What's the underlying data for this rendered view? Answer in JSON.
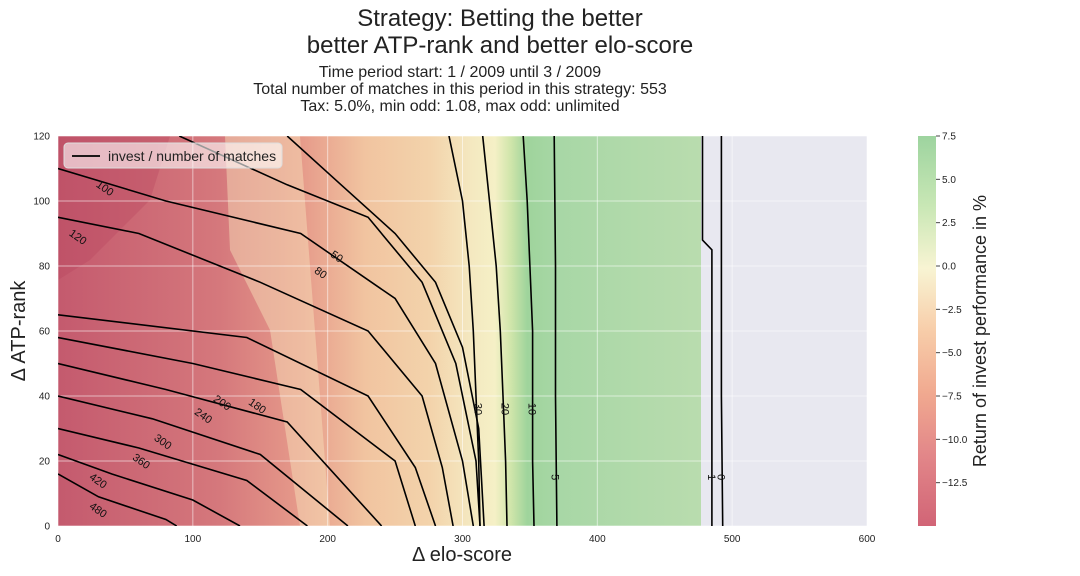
{
  "chart_data": {
    "type": "contour",
    "title": "Strategy: Betting the better",
    "subtitle_line": "better ATP-rank and better elo-score",
    "info": [
      "Time period start: 1 / 2009 until 3 / 2009",
      "Total number of matches in this period in this strategy: 553",
      "Tax: 5.0%, min odd: 1.08, max odd: unlimited"
    ],
    "xlabel": "Δ elo-score",
    "ylabel": "Δ ATP-rank",
    "xlim": [
      0,
      600
    ],
    "ylim": [
      0,
      120
    ],
    "xticks": [
      "0",
      "100",
      "200",
      "300",
      "400",
      "500",
      "600"
    ],
    "yticks": [
      "0",
      "20",
      "40",
      "60",
      "80",
      "100",
      "120"
    ],
    "grid": true,
    "legend": {
      "position": "top-left",
      "entries": [
        "invest / number of matches"
      ]
    },
    "colorbar": {
      "label": "Return of invest performance in %",
      "range": [
        -15,
        7.5
      ],
      "ticks": [
        "7.5",
        "5.0",
        "2.5",
        "0.0",
        "−2.5",
        "−5.0",
        "−7.5",
        "−10.0",
        "−12.5"
      ],
      "colors": [
        "#c9495e",
        "#f2a17e",
        "#f7f2cb",
        "#8ccc8e"
      ]
    },
    "contour_lines": [
      {
        "label": "480",
        "points": [
          [
            0,
            16
          ],
          [
            30,
            9
          ],
          [
            80,
            2
          ],
          [
            88,
            0
          ]
        ],
        "label_at": [
          30,
          5
        ]
      },
      {
        "label": "420",
        "points": [
          [
            0,
            22
          ],
          [
            40,
            16
          ],
          [
            100,
            8
          ],
          [
            135,
            0
          ]
        ],
        "label_at": [
          30,
          14
        ]
      },
      {
        "label": "360",
        "points": [
          [
            0,
            30
          ],
          [
            60,
            24
          ],
          [
            140,
            14
          ],
          [
            185,
            0
          ]
        ],
        "label_at": [
          62,
          20
        ]
      },
      {
        "label": "300",
        "points": [
          [
            0,
            40
          ],
          [
            70,
            33
          ],
          [
            150,
            22
          ],
          [
            215,
            0
          ]
        ],
        "label_at": [
          78,
          26
        ]
      },
      {
        "label": "240",
        "points": [
          [
            0,
            50
          ],
          [
            80,
            42
          ],
          [
            170,
            32
          ],
          [
            240,
            0
          ]
        ],
        "label_at": [
          108,
          34
        ]
      },
      {
        "label": "200",
        "points": [
          [
            0,
            58
          ],
          [
            100,
            50
          ],
          [
            180,
            42
          ],
          [
            250,
            20
          ],
          [
            265,
            0
          ]
        ],
        "label_at": [
          122,
          38
        ]
      },
      {
        "label": "180",
        "points": [
          [
            0,
            65
          ],
          [
            140,
            58
          ],
          [
            230,
            40
          ],
          [
            265,
            18
          ],
          [
            280,
            0
          ]
        ],
        "label_at": [
          148,
          37
        ]
      },
      {
        "label": "120",
        "points": [
          [
            0,
            95
          ],
          [
            60,
            90
          ],
          [
            150,
            75
          ],
          [
            230,
            60
          ],
          [
            270,
            40
          ],
          [
            285,
            18
          ],
          [
            293,
            0
          ]
        ],
        "label_at": [
          15,
          89
        ]
      },
      {
        "label": "100",
        "points": [
          [
            0,
            110
          ],
          [
            80,
            100
          ],
          [
            180,
            90
          ],
          [
            250,
            70
          ],
          [
            280,
            50
          ],
          [
            300,
            20
          ],
          [
            308,
            0
          ]
        ],
        "label_at": [
          35,
          104
        ]
      },
      {
        "label": "80",
        "points": [
          [
            90,
            120
          ],
          [
            170,
            105
          ],
          [
            230,
            95
          ],
          [
            270,
            75
          ],
          [
            295,
            50
          ],
          [
            310,
            20
          ],
          [
            313,
            0
          ]
        ],
        "label_at": [
          195,
          78
        ]
      },
      {
        "label": "50",
        "points": [
          [
            170,
            120
          ],
          [
            210,
            105
          ],
          [
            250,
            90
          ],
          [
            280,
            75
          ],
          [
            300,
            55
          ],
          [
            312,
            30
          ],
          [
            316,
            0
          ]
        ],
        "label_at": [
          207,
          83
        ]
      },
      {
        "label": "30",
        "points": [
          [
            290,
            120
          ],
          [
            300,
            100
          ],
          [
            305,
            80
          ],
          [
            308,
            60
          ],
          [
            310,
            40
          ],
          [
            312,
            20
          ],
          [
            313,
            0
          ]
        ],
        "label_at": [
          312,
          36
        ]
      },
      {
        "label": "20",
        "points": [
          [
            315,
            120
          ],
          [
            320,
            100
          ],
          [
            325,
            80
          ],
          [
            328,
            60
          ],
          [
            330,
            40
          ],
          [
            332,
            20
          ],
          [
            333,
            0
          ]
        ],
        "label_at": [
          332,
          36
        ]
      },
      {
        "label": "10",
        "points": [
          [
            345,
            120
          ],
          [
            348,
            100
          ],
          [
            350,
            80
          ],
          [
            352,
            60
          ],
          [
            352,
            40
          ],
          [
            352,
            20
          ],
          [
            353,
            0
          ]
        ],
        "label_at": [
          352,
          36
        ]
      },
      {
        "label": "5",
        "points": [
          [
            368,
            120
          ],
          [
            369,
            80
          ],
          [
            369,
            40
          ],
          [
            370,
            0
          ]
        ],
        "label_at": [
          369,
          15
        ]
      },
      {
        "label": "1",
        "points": [
          [
            478,
            120
          ],
          [
            478,
            88
          ],
          [
            485,
            85
          ],
          [
            485,
            40
          ],
          [
            485,
            0
          ]
        ],
        "label_at": [
          485,
          15
        ]
      },
      {
        "label": "0",
        "points": [
          [
            492,
            120
          ],
          [
            492,
            40
          ],
          [
            493,
            0
          ]
        ],
        "label_at": [
          492,
          15
        ]
      }
    ]
  }
}
